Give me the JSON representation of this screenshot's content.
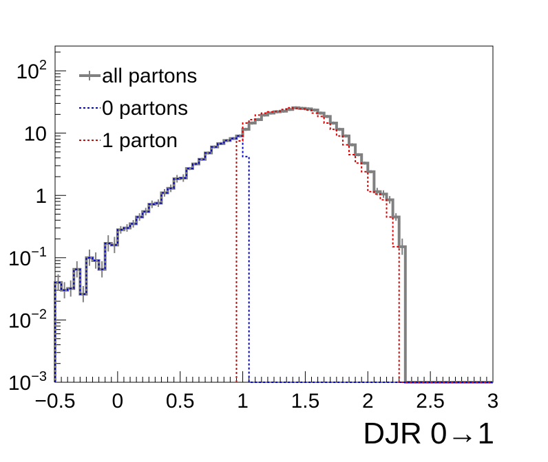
{
  "chart_data": {
    "type": "line",
    "title": "",
    "xlabel": "DJR 0→1",
    "ylabel": "",
    "xlim": [
      -0.5,
      3.0
    ],
    "ylim": [
      0.001,
      250
    ],
    "log_y": true,
    "x_ticks": [
      "−0.5",
      "0",
      "0.5",
      "1",
      "1.5",
      "2",
      "2.5",
      "3"
    ],
    "y_ticks": [
      {
        "base": "10",
        "exp": "−3"
      },
      {
        "base": "10",
        "exp": "−2"
      },
      {
        "base": "10",
        "exp": "−1"
      },
      {
        "base": "1",
        "exp": ""
      },
      {
        "base": "10",
        "exp": ""
      },
      {
        "base": "10",
        "exp": "2"
      }
    ],
    "legend_position": "top-left",
    "bin_edges": [
      -0.5,
      -0.45,
      -0.4,
      -0.35,
      -0.3,
      -0.25,
      -0.2,
      -0.15,
      -0.1,
      -0.05,
      0.0,
      0.05,
      0.1,
      0.15,
      0.2,
      0.25,
      0.3,
      0.35,
      0.4,
      0.45,
      0.5,
      0.55,
      0.6,
      0.65,
      0.7,
      0.75,
      0.8,
      0.85,
      0.9,
      0.95,
      1.0,
      1.05,
      1.1,
      1.15,
      1.2,
      1.25,
      1.3,
      1.35,
      1.4,
      1.45,
      1.5,
      1.55,
      1.6,
      1.65,
      1.7,
      1.75,
      1.8,
      1.85,
      1.9,
      1.95,
      2.0,
      2.05,
      2.1,
      2.15,
      2.2,
      2.25,
      2.3,
      2.35,
      2.4,
      2.45,
      2.5,
      2.55,
      2.6,
      2.65,
      2.7,
      2.75,
      2.8,
      2.85,
      2.9,
      2.95,
      3.0
    ],
    "series": [
      {
        "name": "all partons",
        "color": "#808080",
        "style": "solid",
        "values": [
          0.04,
          0.03,
          0.032,
          0.065,
          0.026,
          0.1,
          0.09,
          0.065,
          0.17,
          0.16,
          0.28,
          0.3,
          0.35,
          0.45,
          0.55,
          0.72,
          0.75,
          1.1,
          1.3,
          1.85,
          1.9,
          2.7,
          3.2,
          3.8,
          4.8,
          6.0,
          6.8,
          7.6,
          8.2,
          9.0,
          11.5,
          14.5,
          16.5,
          19.5,
          21.0,
          22.0,
          22.5,
          24.0,
          25.5,
          25.0,
          24.5,
          23.5,
          21.0,
          18.5,
          14.5,
          11.5,
          9.0,
          6.5,
          4.5,
          3.3,
          2.4,
          1.15,
          1.05,
          0.85,
          0.45,
          0.15
        ],
        "start_edge_index": 0,
        "error_bars": true
      },
      {
        "name": "0 partons",
        "color": "#0000cc",
        "style": "dotted",
        "values": [
          0.04,
          0.03,
          0.032,
          0.065,
          0.026,
          0.1,
          0.09,
          0.065,
          0.17,
          0.16,
          0.28,
          0.3,
          0.35,
          0.45,
          0.55,
          0.72,
          0.75,
          1.1,
          1.3,
          1.85,
          1.9,
          2.7,
          3.2,
          3.8,
          4.8,
          6.0,
          6.8,
          7.6,
          8.2,
          9.0,
          4.2
        ],
        "start_edge_index": 0
      },
      {
        "name": "1 parton",
        "color": "#dd0000",
        "style": "dotted",
        "values": [
          7.5,
          14.5,
          16.5,
          19.5,
          21.0,
          22.0,
          22.5,
          24.0,
          25.5,
          25.0,
          24.5,
          23.5,
          21.0,
          18.5,
          14.5,
          11.5,
          9.0,
          6.5,
          4.5,
          3.3,
          2.4,
          1.15,
          1.05,
          0.85,
          0.45,
          0.15
        ],
        "start_edge_index": 29
      }
    ]
  }
}
